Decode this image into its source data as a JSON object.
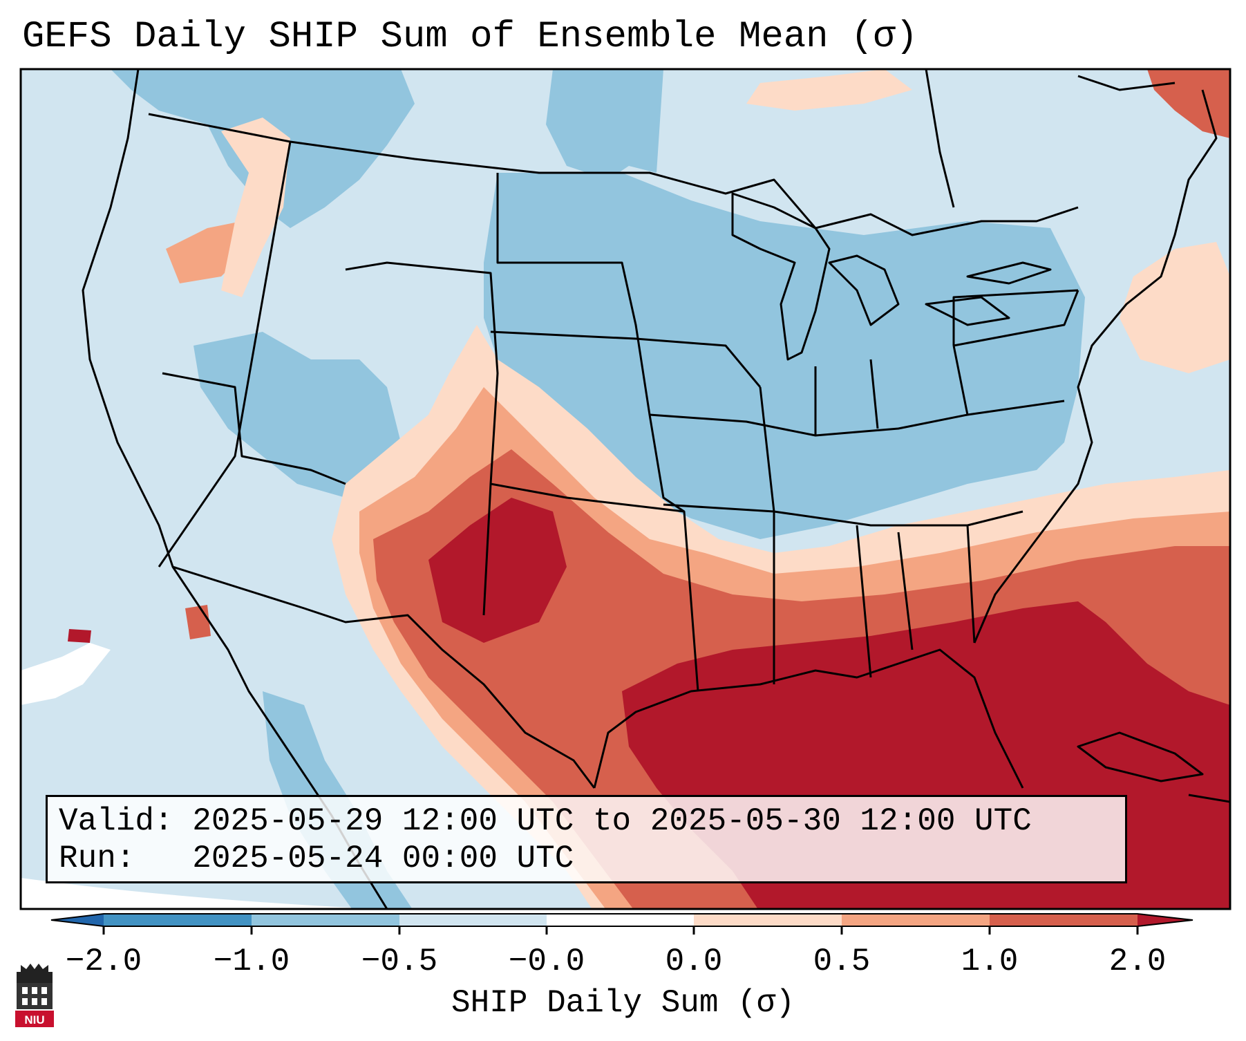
{
  "title": "GEFS Daily SHIP Sum of Ensemble Mean (σ)",
  "info": {
    "valid_label": "Valid:",
    "valid_value": "2025-05-29 12:00 UTC to 2025-05-30 12:00 UTC",
    "run_label": "Run:",
    "run_value": "2025-05-24 00:00 UTC"
  },
  "colorbar": {
    "label": "SHIP Daily Sum (σ)",
    "ticks": [
      "−2.0",
      "−1.0",
      "−0.5",
      "−0.0",
      "0.0",
      "0.5",
      "1.0",
      "2.0"
    ],
    "colors": [
      "#2166ac",
      "#4393c3",
      "#92c5de",
      "#d1e5f0",
      "#ffffff",
      "#fddbc7",
      "#f4a582",
      "#d6604d",
      "#b2182b"
    ]
  },
  "logo": {
    "text": "NIU",
    "color": "#c8102e"
  }
}
